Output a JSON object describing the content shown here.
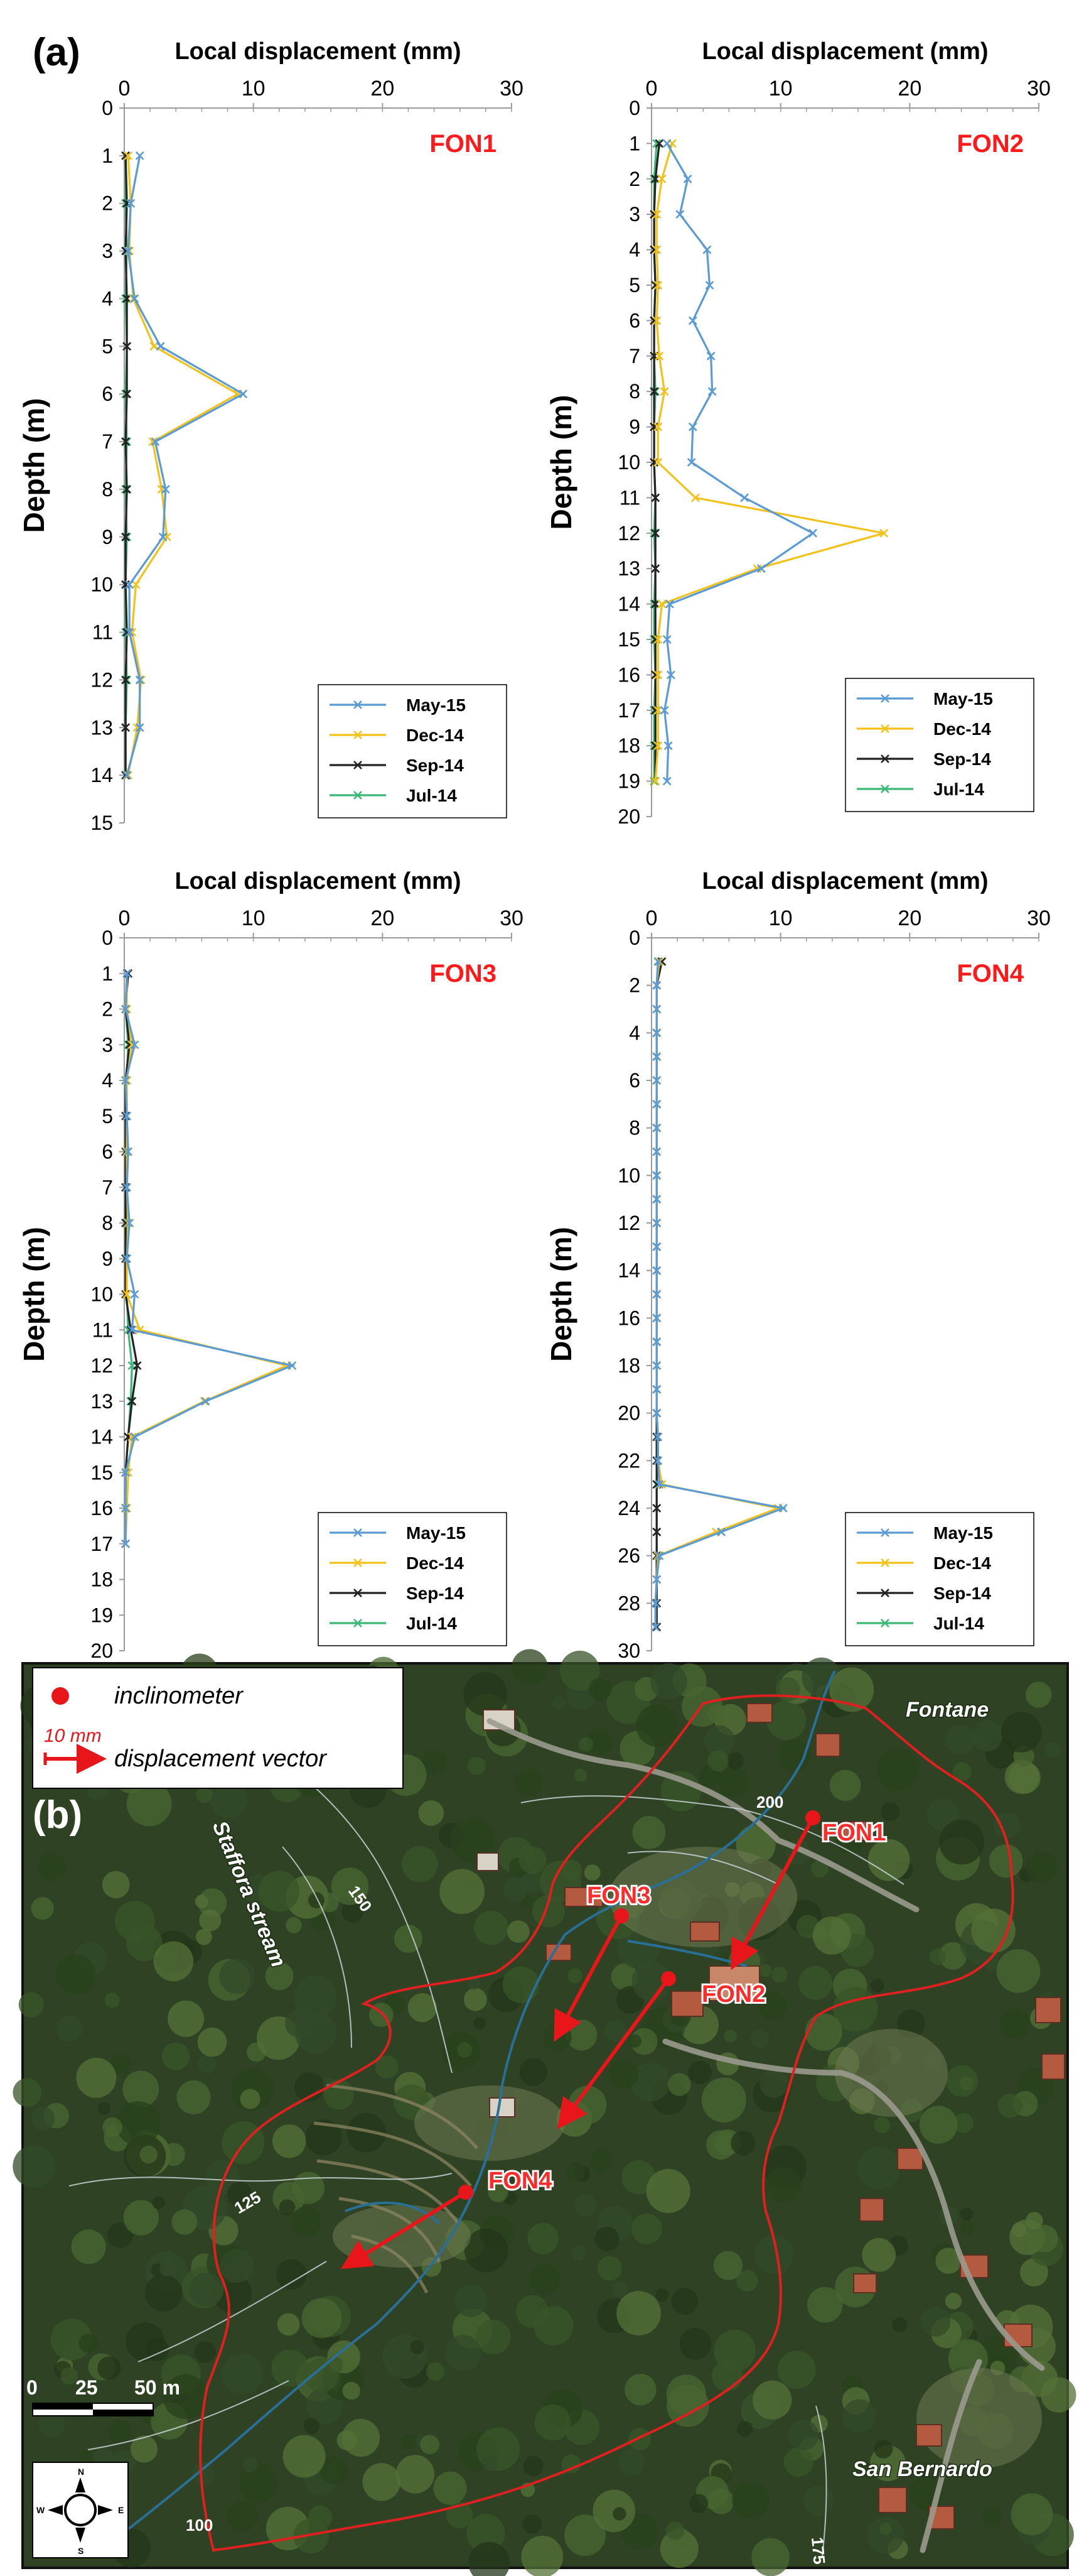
{
  "panel_a_label": "(a)",
  "panel_b_label": "(b)",
  "chart_data": [
    {
      "type": "line",
      "title": "FON1",
      "xlabel": "Local displacement (mm)",
      "ylabel": "Depth (m)",
      "xlim": [
        0,
        30
      ],
      "xticks": [
        0,
        10,
        20,
        30
      ],
      "ylim": [
        0,
        15
      ],
      "yticks": [
        0,
        1,
        2,
        3,
        4,
        5,
        6,
        7,
        8,
        9,
        10,
        11,
        12,
        13,
        14,
        15
      ],
      "y_inverted": true,
      "grid": false,
      "legend_position": "bottom-right",
      "series": [
        {
          "name": "May-15",
          "color": "#5b9bd5",
          "x": [
            1.2,
            0.5,
            0.3,
            0.8,
            2.8,
            9.2,
            2.4,
            3.2,
            3.0,
            0.4,
            0.4,
            1.2,
            1.2,
            0.2
          ],
          "y": [
            1,
            2,
            3,
            4,
            5,
            6,
            7,
            8,
            9,
            10,
            11,
            12,
            13,
            14
          ]
        },
        {
          "name": "Dec-14",
          "color": "#f2c21a",
          "x": [
            0.3,
            0.5,
            0.4,
            0.7,
            2.3,
            8.8,
            2.2,
            2.9,
            3.3,
            0.9,
            0.6,
            1.3,
            1.0,
            0.3
          ],
          "y": [
            1,
            2,
            3,
            4,
            5,
            6,
            7,
            8,
            9,
            10,
            11,
            12,
            13,
            14
          ]
        },
        {
          "name": "Sep-14",
          "color": "#222222",
          "x": [
            0.1,
            0.2,
            0.1,
            0.2,
            0.2,
            0.2,
            0.1,
            0.2,
            0.1,
            0.1,
            0.2,
            0.1,
            0.1,
            0.1
          ],
          "y": [
            1,
            2,
            3,
            4,
            5,
            6,
            7,
            8,
            9,
            10,
            11,
            12,
            13,
            14
          ]
        },
        {
          "name": "Jul-14",
          "color": "#3cb878",
          "x": [
            0.1,
            0.1,
            0.2,
            0.1,
            0.2,
            0.1,
            0.2,
            0.1,
            0.2,
            0.1,
            0.1,
            0.2,
            0.1,
            0.1
          ],
          "y": [
            1,
            2,
            3,
            4,
            5,
            6,
            7,
            8,
            9,
            10,
            11,
            12,
            13,
            14
          ]
        }
      ]
    },
    {
      "type": "line",
      "title": "FON2",
      "xlabel": "Local displacement (mm)",
      "ylabel": "Depth (m)",
      "xlim": [
        0,
        30
      ],
      "xticks": [
        0,
        10,
        20,
        30
      ],
      "ylim": [
        0,
        20
      ],
      "yticks": [
        0,
        1,
        2,
        3,
        4,
        5,
        6,
        7,
        8,
        9,
        10,
        11,
        12,
        13,
        14,
        15,
        16,
        17,
        18,
        19,
        20
      ],
      "y_inverted": true,
      "grid": false,
      "legend_position": "bottom-right",
      "series": [
        {
          "name": "May-15",
          "color": "#5b9bd5",
          "x": [
            1.2,
            2.8,
            2.2,
            4.3,
            4.5,
            3.2,
            4.6,
            4.7,
            3.2,
            3.1,
            7.2,
            12.5,
            8.5,
            1.4,
            1.2,
            1.5,
            1.0,
            1.3,
            1.2
          ],
          "y": [
            1,
            2,
            3,
            4,
            5,
            6,
            7,
            8,
            9,
            10,
            11,
            12,
            13,
            14,
            15,
            16,
            17,
            18,
            19
          ]
        },
        {
          "name": "Dec-14",
          "color": "#f2c21a",
          "x": [
            1.6,
            0.8,
            0.4,
            0.4,
            0.5,
            0.4,
            0.6,
            1.0,
            0.5,
            0.5,
            3.4,
            18.0,
            8.2,
            0.8,
            0.5,
            0.5,
            0.5,
            0.5,
            0.3
          ],
          "y": [
            1,
            2,
            3,
            4,
            5,
            6,
            7,
            8,
            9,
            10,
            11,
            12,
            13,
            14,
            15,
            16,
            17,
            18,
            19
          ]
        },
        {
          "name": "Sep-14",
          "color": "#222222",
          "x": [
            0.6,
            0.3,
            0.2,
            0.2,
            0.3,
            0.2,
            0.2,
            0.2,
            0.2,
            0.2,
            0.3,
            0.3,
            0.3,
            0.3,
            0.3,
            0.3,
            0.3,
            0.3,
            0.3
          ],
          "y": [
            1,
            2,
            3,
            4,
            5,
            6,
            7,
            8,
            9,
            10,
            11,
            12,
            13,
            14,
            15,
            16,
            17,
            18,
            19
          ]
        },
        {
          "name": "Jul-14",
          "color": "#3cb878",
          "x": [
            0.4,
            0.2,
            0.2,
            0.2,
            0.3,
            0.2,
            0.2,
            0.3,
            0.2,
            0.2,
            0.3,
            0.2,
            0.3,
            0.2,
            0.2,
            0.3,
            0.2,
            0.2,
            0.2
          ],
          "y": [
            1,
            2,
            3,
            4,
            5,
            6,
            7,
            8,
            9,
            10,
            11,
            12,
            13,
            14,
            15,
            16,
            17,
            18,
            19
          ]
        }
      ]
    },
    {
      "type": "line",
      "title": "FON3",
      "xlabel": "Local displacement (mm)",
      "ylabel": "Depth (m)",
      "xlim": [
        0,
        30
      ],
      "xticks": [
        0,
        10,
        20,
        30
      ],
      "ylim": [
        0,
        20
      ],
      "yticks": [
        0,
        1,
        2,
        3,
        4,
        5,
        6,
        7,
        8,
        9,
        10,
        11,
        12,
        13,
        14,
        15,
        16,
        17,
        18,
        19,
        20
      ],
      "y_inverted": true,
      "grid": false,
      "legend_position": "bottom-right",
      "series": [
        {
          "name": "May-15",
          "color": "#5b9bd5",
          "x": [
            0.2,
            0.1,
            0.8,
            0.1,
            0.2,
            0.3,
            0.2,
            0.4,
            0.2,
            0.8,
            0.6,
            13.0,
            6.3,
            0.8,
            0.1,
            0.1,
            0.1
          ],
          "y": [
            1,
            2,
            3,
            4,
            5,
            6,
            7,
            8,
            9,
            10,
            11,
            12,
            13,
            14,
            15,
            16,
            17
          ]
        },
        {
          "name": "Dec-14",
          "color": "#f2c21a",
          "x": [
            0.2,
            0.2,
            0.6,
            0.2,
            0.2,
            0.2,
            0.2,
            0.3,
            0.2,
            0.2,
            1.2,
            12.6,
            6.2,
            0.6,
            0.3,
            0.2,
            0.1
          ],
          "y": [
            1,
            2,
            3,
            4,
            5,
            6,
            7,
            8,
            9,
            10,
            11,
            12,
            13,
            14,
            15,
            16,
            17
          ]
        },
        {
          "name": "Sep-14",
          "color": "#222222",
          "x": [
            0.3,
            0.1,
            0.4,
            0.1,
            0.1,
            0.1,
            0.1,
            0.1,
            0.1,
            0.1,
            0.5,
            1.0,
            0.6,
            0.3,
            0.1,
            0.1,
            0.1
          ],
          "y": [
            1,
            2,
            3,
            4,
            5,
            6,
            7,
            8,
            9,
            10,
            11,
            12,
            13,
            14,
            15,
            16,
            17
          ]
        },
        {
          "name": "Jul-14",
          "color": "#3cb878",
          "x": [
            0.2,
            0.1,
            0.3,
            0.2,
            0.1,
            0.2,
            0.1,
            0.2,
            0.1,
            0.2,
            0.3,
            0.6,
            0.5,
            0.3,
            0.1,
            0.1,
            0.1
          ],
          "y": [
            1,
            2,
            3,
            4,
            5,
            6,
            7,
            8,
            9,
            10,
            11,
            12,
            13,
            14,
            15,
            16,
            17
          ]
        }
      ]
    },
    {
      "type": "line",
      "title": "FON4",
      "xlabel": "Local displacement (mm)",
      "ylabel": "Depth (m)",
      "xlim": [
        0,
        30
      ],
      "xticks": [
        0,
        10,
        20,
        30
      ],
      "ylim": [
        0,
        30
      ],
      "yticks": [
        0,
        2,
        4,
        6,
        8,
        10,
        12,
        14,
        16,
        18,
        20,
        22,
        24,
        26,
        28,
        30
      ],
      "y_inverted": true,
      "grid": false,
      "legend_position": "bottom-right",
      "series": [
        {
          "name": "May-15",
          "color": "#5b9bd5",
          "x": [
            0.5,
            0.4,
            0.4,
            0.4,
            0.4,
            0.4,
            0.4,
            0.4,
            0.4,
            0.4,
            0.4,
            0.4,
            0.4,
            0.4,
            0.4,
            0.4,
            0.4,
            0.4,
            0.4,
            0.4,
            0.5,
            0.5,
            0.6,
            10.2,
            5.4,
            0.6,
            0.4,
            0.3,
            0.3
          ],
          "y": [
            1,
            2,
            3,
            4,
            5,
            6,
            7,
            8,
            9,
            10,
            11,
            12,
            13,
            14,
            15,
            16,
            17,
            18,
            19,
            20,
            21,
            22,
            23,
            24,
            25,
            26,
            27,
            28,
            29
          ]
        },
        {
          "name": "Dec-14",
          "color": "#f2c21a",
          "x": [
            0.6,
            0.4,
            0.4,
            0.4,
            0.4,
            0.4,
            0.4,
            0.4,
            0.4,
            0.4,
            0.4,
            0.4,
            0.4,
            0.4,
            0.4,
            0.4,
            0.4,
            0.4,
            0.4,
            0.4,
            0.5,
            0.5,
            0.8,
            9.8,
            5.0,
            0.5,
            0.4,
            0.3,
            0.3
          ],
          "y": [
            1,
            2,
            3,
            4,
            5,
            6,
            7,
            8,
            9,
            10,
            11,
            12,
            13,
            14,
            15,
            16,
            17,
            18,
            19,
            20,
            21,
            22,
            23,
            24,
            25,
            26,
            27,
            28,
            29
          ]
        },
        {
          "name": "Sep-14",
          "color": "#222222",
          "x": [
            0.8,
            0.4,
            0.4,
            0.4,
            0.4,
            0.4,
            0.4,
            0.4,
            0.4,
            0.4,
            0.4,
            0.4,
            0.4,
            0.4,
            0.4,
            0.4,
            0.4,
            0.4,
            0.4,
            0.4,
            0.4,
            0.4,
            0.4,
            0.4,
            0.4,
            0.4,
            0.4,
            0.4,
            0.4
          ],
          "y": [
            1,
            2,
            3,
            4,
            5,
            6,
            7,
            8,
            9,
            10,
            11,
            12,
            13,
            14,
            15,
            16,
            17,
            18,
            19,
            20,
            21,
            22,
            23,
            24,
            25,
            26,
            27,
            28,
            29
          ]
        },
        {
          "name": "Jul-14",
          "color": "#3cb878",
          "x": [
            0.5,
            0.4,
            0.4,
            0.4,
            0.4,
            0.4,
            0.4,
            0.4,
            0.4,
            0.4,
            0.4,
            0.4,
            0.4,
            0.4,
            0.4,
            0.4,
            0.4,
            0.4,
            0.4,
            0.4,
            0.4,
            0.4,
            0.4,
            0.4,
            0.4,
            0.4,
            0.4,
            0.4,
            0.4
          ],
          "y": [
            1,
            2,
            3,
            4,
            5,
            6,
            7,
            8,
            9,
            10,
            11,
            12,
            13,
            14,
            15,
            16,
            17,
            18,
            19,
            20,
            21,
            22,
            23,
            24,
            25,
            26,
            27,
            28,
            29
          ]
        }
      ]
    }
  ],
  "map": {
    "legend": {
      "point_label": "inclinometer",
      "vector_scale": "10 mm",
      "vector_label": "displacement vector"
    },
    "place_labels": [
      "Fontane",
      "San Bernardo",
      "Staffora stream"
    ],
    "contour_labels": [
      "200",
      "150",
      "125",
      "100",
      "175"
    ],
    "inclinometers": [
      {
        "name": "FON1"
      },
      {
        "name": "FON2"
      },
      {
        "name": "FON3"
      },
      {
        "name": "FON4"
      }
    ],
    "scale_bar": {
      "ticks": [
        "0",
        "25",
        "50 m"
      ]
    },
    "compass": {
      "n": "N",
      "s": "S",
      "e": "E",
      "w": "W"
    },
    "colors": {
      "vector": "#e8161b",
      "boundary": "#e02020",
      "stream": "#2a6f97",
      "contour": "#c9d2d6"
    }
  }
}
